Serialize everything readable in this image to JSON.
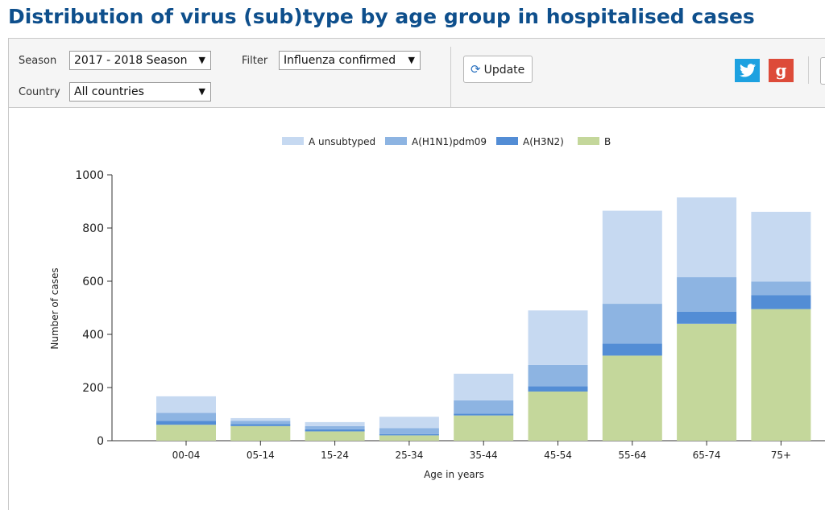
{
  "page_title": "Distribution of virus (sub)type by age group in hospitalised cases",
  "filters": {
    "season_label": "Season",
    "season_value": "2017 - 2018 Season",
    "filter_label": "Filter",
    "filter_value": "Influenza confirmed",
    "country_label": "Country",
    "country_value": "All countries",
    "dropdown_arrow": "▼",
    "update_label": "Update",
    "refresh_glyph": "⟳"
  },
  "social": {
    "twitter_icon": "twitter-icon",
    "twitter_glyph": "🐦",
    "google_icon": "google-plus-icon",
    "google_glyph": "g"
  },
  "colors": {
    "title": "#0e4f8c",
    "a_unsubtyped": "#c6d9f1",
    "a_h1n1": "#8db4e2",
    "a_h3n2": "#538dd5",
    "b": "#c4d79b"
  },
  "chart_data": {
    "type": "bar",
    "stacked": true,
    "xlabel": "Age in years",
    "ylabel": "Number of cases",
    "ylim": [
      0,
      1000
    ],
    "yticks": [
      0,
      200,
      400,
      600,
      800,
      1000
    ],
    "legend_position": "top-center",
    "grid": false,
    "categories": [
      "00-04",
      "05-14",
      "15-24",
      "25-34",
      "35-44",
      "45-54",
      "55-64",
      "65-74",
      "75+"
    ],
    "series": [
      {
        "name": "B",
        "color": "#c4d79b",
        "values": [
          60,
          55,
          35,
          20,
          95,
          185,
          320,
          440,
          495
        ]
      },
      {
        "name": "A(H3N2)",
        "color": "#538dd5",
        "values": [
          15,
          8,
          8,
          5,
          7,
          20,
          45,
          45,
          52
        ]
      },
      {
        "name": "A(H1N1)pdm09",
        "color": "#8db4e2",
        "values": [
          30,
          12,
          12,
          22,
          50,
          80,
          150,
          130,
          52
        ]
      },
      {
        "name": "A unsubtyped",
        "color": "#c6d9f1",
        "values": [
          62,
          10,
          15,
          43,
          100,
          205,
          350,
          300,
          262
        ]
      }
    ],
    "legend_order": [
      "A unsubtyped",
      "A(H1N1)pdm09",
      "A(H3N2)",
      "B"
    ]
  }
}
